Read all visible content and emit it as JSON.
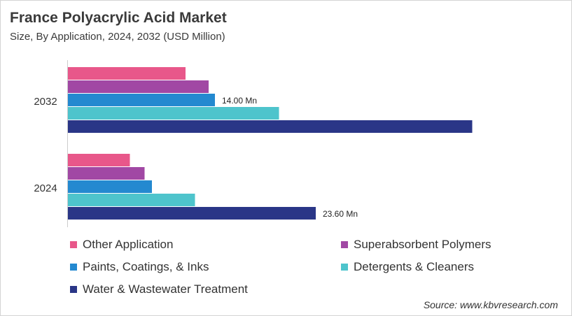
{
  "header": {
    "title": "France Polyacrylic Acid Market",
    "subtitle": "Size, By Application, 2024, 2032 (USD Million)"
  },
  "source": "Source: www.kbvresearch.com",
  "chart_data": {
    "type": "bar",
    "orientation": "horizontal",
    "title": "France Polyacrylic Acid Market",
    "subtitle": "Size, By Application, 2024, 2032 (USD Million)",
    "categories": [
      "2032",
      "2024"
    ],
    "series": [
      {
        "name": "Other Application",
        "color": "#e8578a",
        "values": [
          11.2,
          5.9
        ]
      },
      {
        "name": "Superabsorbent Polymers",
        "color": "#a148a4",
        "values": [
          13.4,
          7.3
        ]
      },
      {
        "name": "Paints, Coatings, & Inks",
        "color": "#2489d0",
        "values": [
          14.0,
          8.0
        ]
      },
      {
        "name": "Detergents & Cleaners",
        "color": "#4ec4cc",
        "values": [
          20.1,
          12.1
        ]
      },
      {
        "name": "Water & Wastewater Treatment",
        "color": "#2a3687",
        "values": [
          38.5,
          23.6
        ]
      }
    ],
    "data_labels": [
      {
        "category": "2032",
        "series": "Paints, Coatings, & Inks",
        "text": "14.00 Mn"
      },
      {
        "category": "2024",
        "series": "Water & Wastewater Treatment",
        "text": "23.60 Mn"
      }
    ],
    "xlim": [
      0,
      40
    ],
    "grid": false,
    "legend_position": "bottom"
  }
}
